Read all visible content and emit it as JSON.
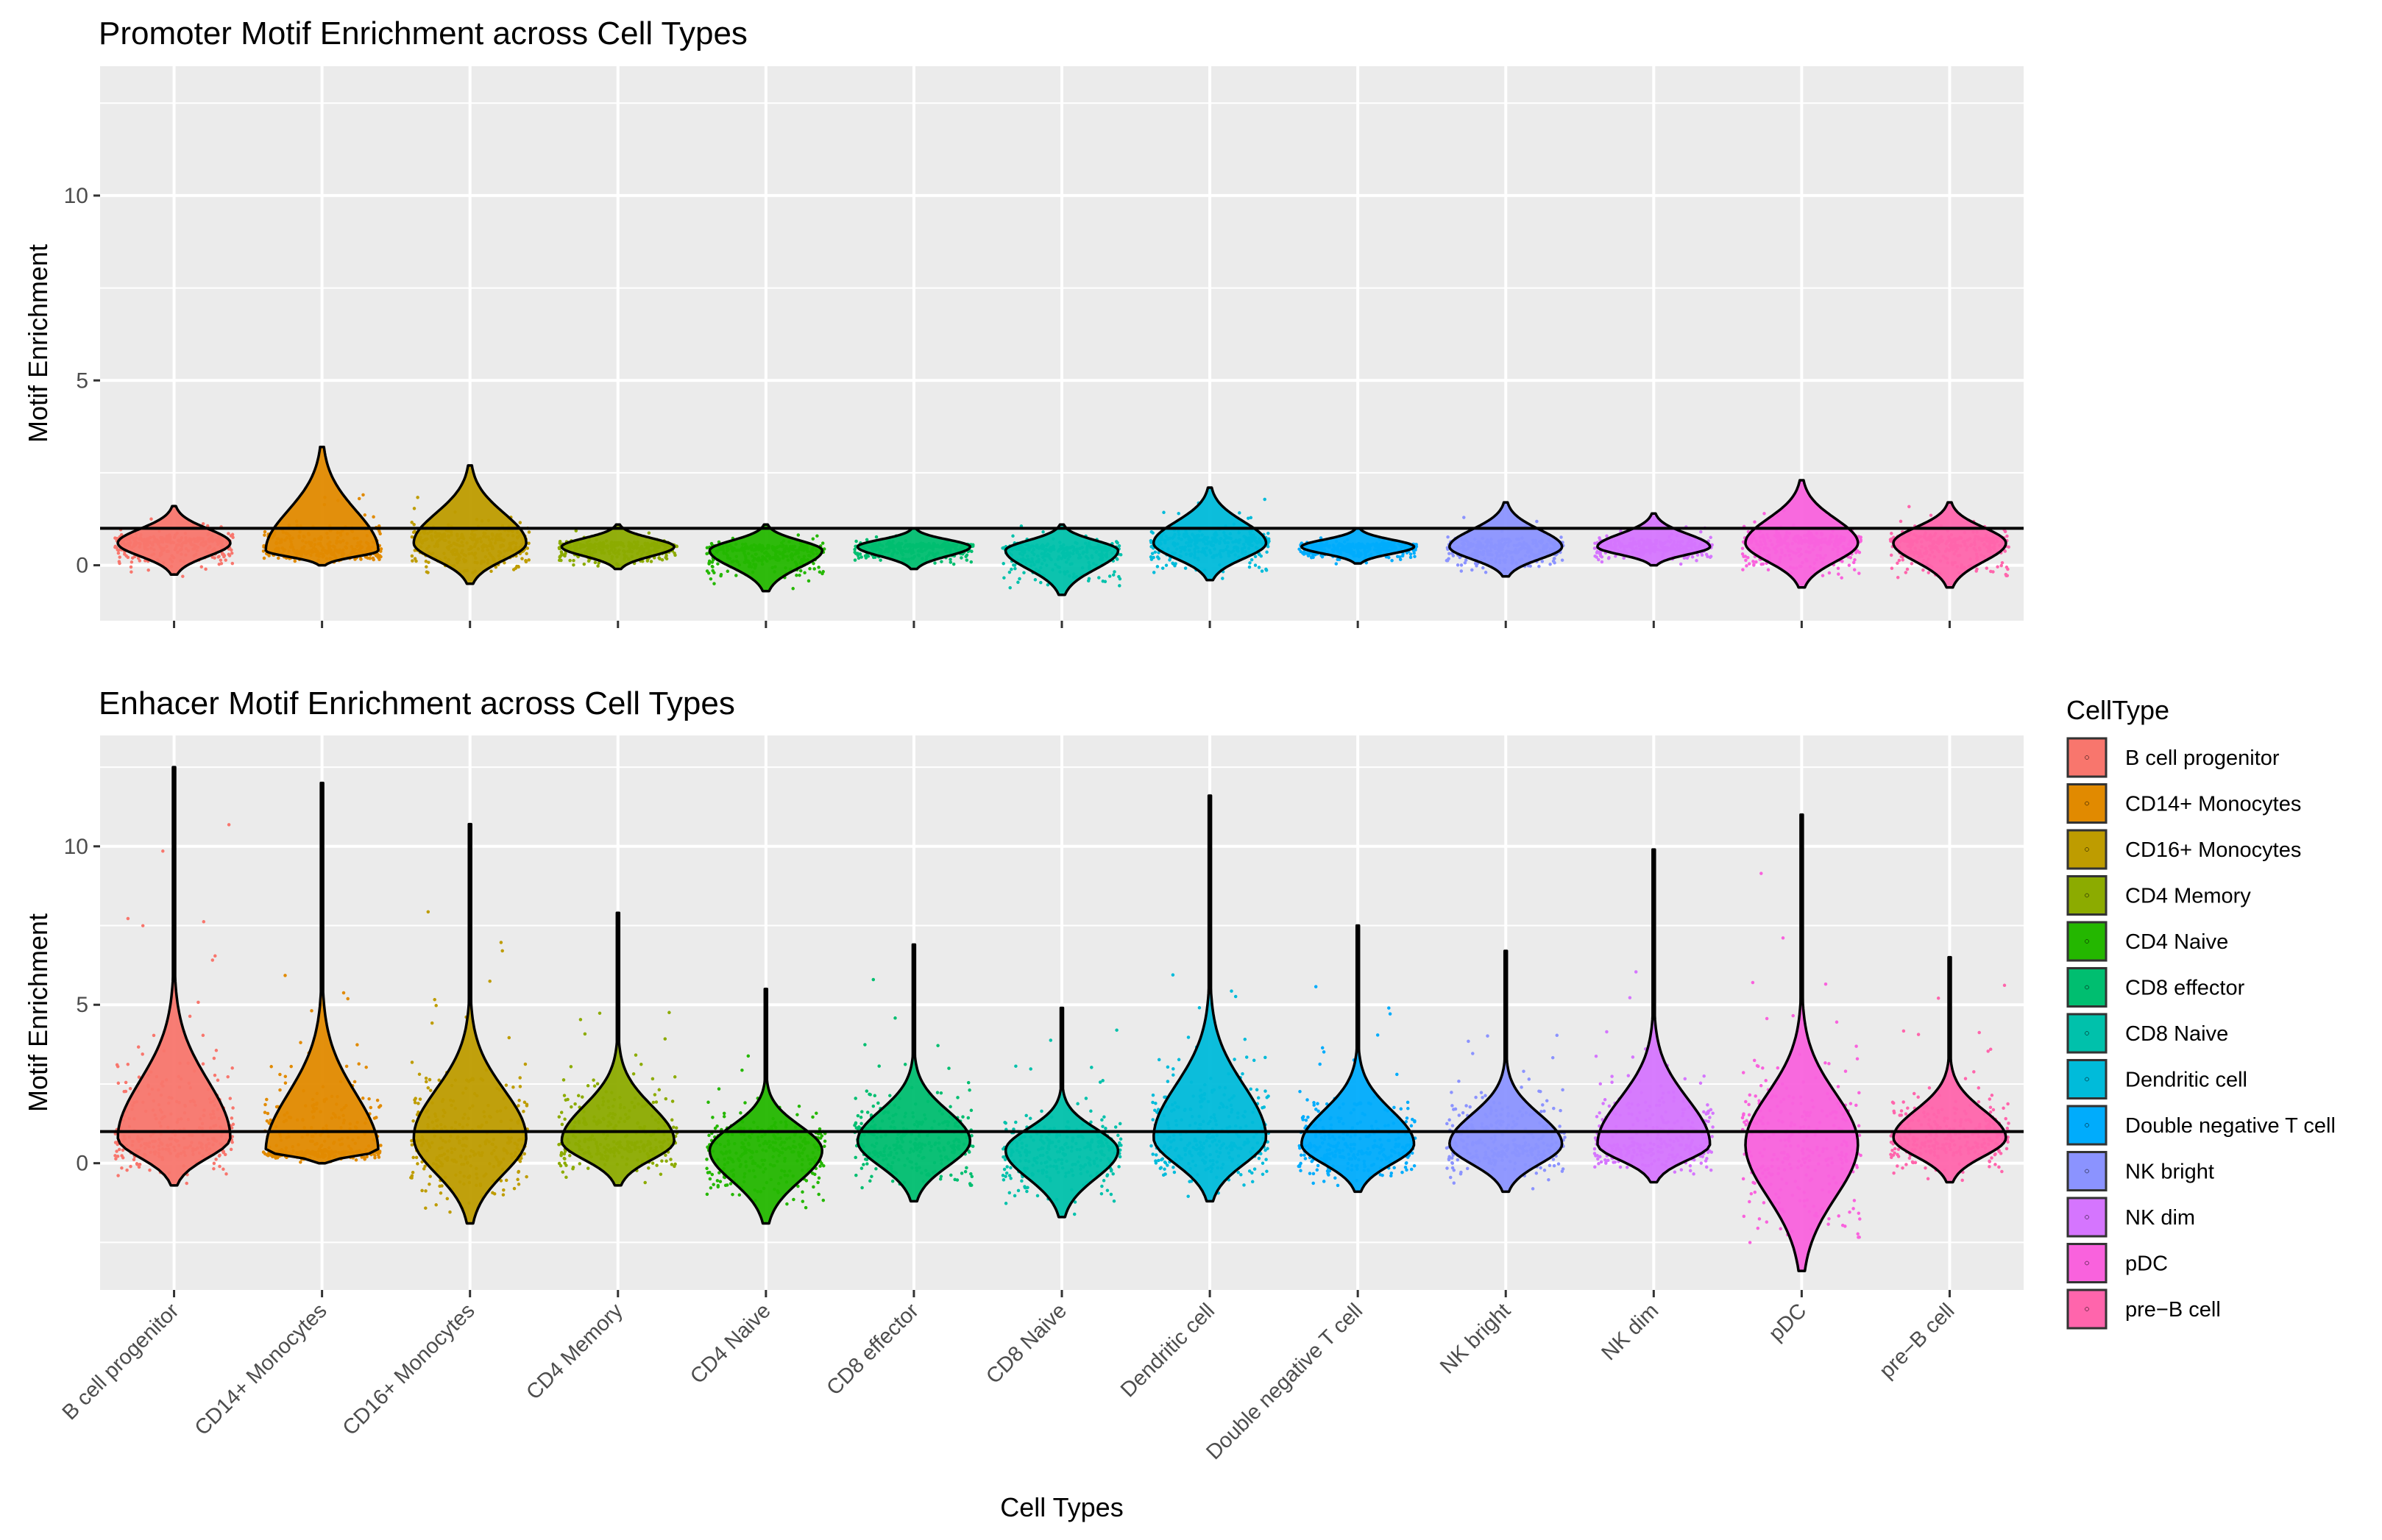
{
  "chart_data": {
    "type": "violin",
    "xlabel": "Cell Types",
    "ylabel": "Motif Enrichment",
    "categories": [
      "B cell progenitor",
      "CD14+ Monocytes",
      "CD16+ Monocytes",
      "CD4 Memory",
      "CD4 Naive",
      "CD8 effector",
      "CD8 Naive",
      "Dendritic cell",
      "Double negative T cell",
      "NK bright",
      "NK dim",
      "pDC",
      "pre−B cell"
    ],
    "colors": [
      "#F8766D",
      "#E18A00",
      "#BE9C00",
      "#8CAB00",
      "#24B700",
      "#00BE70",
      "#00C1AB",
      "#00BBDA",
      "#00ACFC",
      "#8B93FF",
      "#D575FE",
      "#F962DD",
      "#FF65AC"
    ],
    "legend": {
      "title": "CellType",
      "position": "right",
      "entries": [
        "B cell progenitor",
        "CD14+ Monocytes",
        "CD16+ Monocytes",
        "CD4 Memory",
        "CD4 Naive",
        "CD8 effector",
        "CD8 Naive",
        "Dendritic cell",
        "Double negative T cell",
        "NK bright",
        "NK dim",
        "pDC",
        "pre−B cell"
      ]
    },
    "panels": [
      {
        "title": "Promoter Motif Enrichment across Cell Types",
        "ylim": [
          -1.5,
          13.5
        ],
        "yticks": [
          0,
          5,
          10
        ],
        "hline": 1,
        "show_x_labels": false,
        "series": [
          {
            "name": "B cell progenitor",
            "min": -0.25,
            "max": 1.6,
            "median": 0.6,
            "jitter_min": -0.3,
            "jitter_max": 1.6
          },
          {
            "name": "CD14+ Monocytes",
            "min": 0.0,
            "max": 3.2,
            "median": 0.4,
            "jitter_min": 0.0,
            "jitter_max": 3.3
          },
          {
            "name": "CD16+ Monocytes",
            "min": -0.5,
            "max": 2.7,
            "median": 0.6,
            "jitter_min": -0.5,
            "jitter_max": 2.6
          },
          {
            "name": "CD4 Memory",
            "min": -0.1,
            "max": 1.1,
            "median": 0.5,
            "jitter_min": -0.1,
            "jitter_max": 1.1
          },
          {
            "name": "CD4 Naive",
            "min": -0.7,
            "max": 1.1,
            "median": 0.4,
            "jitter_min": -0.7,
            "jitter_max": 1.1
          },
          {
            "name": "CD8 effector",
            "min": -0.1,
            "max": 1.0,
            "median": 0.5,
            "jitter_min": -0.1,
            "jitter_max": 1.0
          },
          {
            "name": "CD8 Naive",
            "min": -0.8,
            "max": 1.1,
            "median": 0.4,
            "jitter_min": -0.9,
            "jitter_max": 1.2
          },
          {
            "name": "Dendritic cell",
            "min": -0.4,
            "max": 2.1,
            "median": 0.6,
            "jitter_min": -0.4,
            "jitter_max": 2.0
          },
          {
            "name": "Double negative T cell",
            "min": 0.05,
            "max": 1.0,
            "median": 0.5,
            "jitter_min": 0.0,
            "jitter_max": 1.0
          },
          {
            "name": "NK bright",
            "min": -0.3,
            "max": 1.7,
            "median": 0.5,
            "jitter_min": -0.3,
            "jitter_max": 1.6
          },
          {
            "name": "NK dim",
            "min": 0.0,
            "max": 1.4,
            "median": 0.5,
            "jitter_min": 0.0,
            "jitter_max": 1.4
          },
          {
            "name": "pDC",
            "min": -0.6,
            "max": 2.3,
            "median": 0.6,
            "jitter_min": -0.6,
            "jitter_max": 2.1
          },
          {
            "name": "pre−B cell",
            "min": -0.6,
            "max": 1.7,
            "median": 0.6,
            "jitter_min": -0.6,
            "jitter_max": 1.8
          }
        ]
      },
      {
        "title": "Enhacer Motif Enrichment  across Cell Types",
        "ylim": [
          -4.0,
          13.5
        ],
        "yticks": [
          0,
          5,
          10
        ],
        "hline": 1,
        "show_x_labels": true,
        "series": [
          {
            "name": "B cell progenitor",
            "min": -0.7,
            "max": 12.5,
            "median": 0.8,
            "jitter_min": -0.7,
            "jitter_max": 12.5
          },
          {
            "name": "CD14+ Monocytes",
            "min": 0.0,
            "max": 12.0,
            "median": 0.4,
            "jitter_min": 0.0,
            "jitter_max": 12.0
          },
          {
            "name": "CD16+ Monocytes",
            "min": -1.9,
            "max": 10.7,
            "median": 0.8,
            "jitter_min": -1.9,
            "jitter_max": 10.7
          },
          {
            "name": "CD4 Memory",
            "min": -0.7,
            "max": 7.9,
            "median": 0.7,
            "jitter_min": -0.7,
            "jitter_max": 7.9
          },
          {
            "name": "CD4 Naive",
            "min": -1.9,
            "max": 5.5,
            "median": 0.4,
            "jitter_min": -1.9,
            "jitter_max": 5.5
          },
          {
            "name": "CD8 effector",
            "min": -1.2,
            "max": 6.9,
            "median": 0.7,
            "jitter_min": -1.2,
            "jitter_max": 6.9
          },
          {
            "name": "CD8 Naive",
            "min": -1.7,
            "max": 4.9,
            "median": 0.4,
            "jitter_min": -1.7,
            "jitter_max": 4.9
          },
          {
            "name": "Dendritic cell",
            "min": -1.2,
            "max": 11.6,
            "median": 0.8,
            "jitter_min": -1.2,
            "jitter_max": 11.6
          },
          {
            "name": "Double negative T cell",
            "min": -0.9,
            "max": 7.5,
            "median": 0.6,
            "jitter_min": -0.9,
            "jitter_max": 7.5
          },
          {
            "name": "NK bright",
            "min": -0.9,
            "max": 6.7,
            "median": 0.6,
            "jitter_min": -0.9,
            "jitter_max": 6.7
          },
          {
            "name": "NK dim",
            "min": -0.6,
            "max": 9.9,
            "median": 0.6,
            "jitter_min": -0.6,
            "jitter_max": 9.9
          },
          {
            "name": "pDC",
            "min": -3.4,
            "max": 11.0,
            "median": 0.6,
            "jitter_min": -3.4,
            "jitter_max": 11.0
          },
          {
            "name": "pre−B cell",
            "min": -0.6,
            "max": 6.5,
            "median": 0.8,
            "jitter_min": -0.6,
            "jitter_max": 6.5
          }
        ]
      }
    ]
  }
}
